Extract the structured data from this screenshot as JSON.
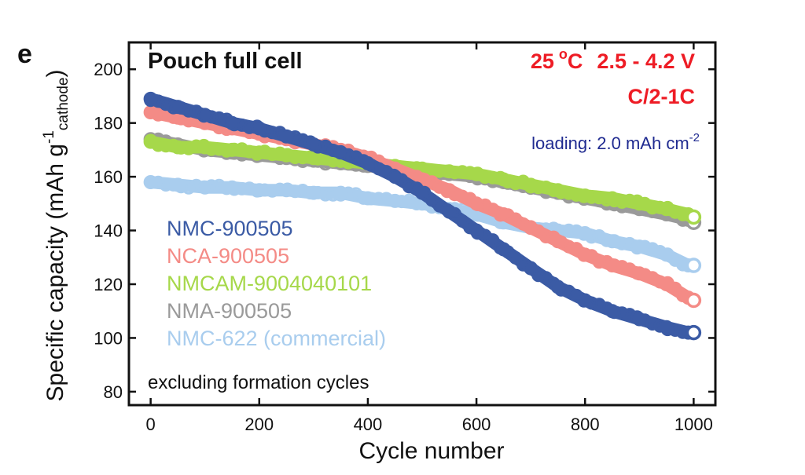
{
  "panel_letter": "e",
  "chart_data": {
    "type": "scatter",
    "title": "Pouch full cell",
    "conditions": {
      "temperature": "25",
      "degree_unit": "o",
      "temperature_unit": "C",
      "voltage": "2.5 - 4.2 V",
      "rate": "C/2-1C",
      "loading_prefix": "loading: 2.0 mAh cm",
      "loading_exp": "-2",
      "text_color": "#ee1c25",
      "loading_color": "#1f2a90"
    },
    "note": "excluding formation cycles",
    "xlabel": "Cycle number",
    "ylabel": {
      "main": "Specific capacity (mAh g",
      "sup": "-1",
      "sub": "cathode",
      "close": ")"
    },
    "xlim": [
      -40,
      1040
    ],
    "ylim": [
      75,
      210
    ],
    "xticks": [
      0,
      200,
      400,
      600,
      800,
      1000
    ],
    "yticks": [
      80,
      100,
      120,
      140,
      160,
      180,
      200
    ],
    "legend_placement": "middle-left",
    "grid": false,
    "series": [
      {
        "name": "NMC-622 (commercial)",
        "color": "#a9cdee",
        "x": [
          0,
          50,
          100,
          150,
          200,
          250,
          300,
          350,
          400,
          450,
          500,
          550,
          600,
          650,
          700,
          750,
          800,
          850,
          900,
          950,
          990
        ],
        "y": [
          158,
          157,
          156,
          156,
          155,
          155,
          154,
          154,
          152,
          151,
          150,
          148,
          146,
          143,
          141,
          140,
          139,
          136,
          134,
          131,
          127
        ],
        "end": {
          "x": 1000,
          "y": 127
        }
      },
      {
        "name": "NMA-900505",
        "color": "#9a9a9a",
        "x": [
          0,
          50,
          100,
          150,
          200,
          250,
          300,
          350,
          400,
          450,
          500,
          550,
          600,
          650,
          700,
          750,
          800,
          850,
          900,
          950,
          990
        ],
        "y": [
          174,
          172,
          170,
          169,
          168,
          167,
          166,
          165,
          164,
          163,
          162,
          161,
          160,
          158,
          156,
          154,
          152,
          150,
          148,
          146,
          144
        ],
        "end": {
          "x": 1000,
          "y": 143
        }
      },
      {
        "name": "NMCAM-9004040101",
        "color": "#a6d84a",
        "x": [
          0,
          50,
          100,
          150,
          200,
          250,
          300,
          350,
          400,
          450,
          500,
          550,
          600,
          650,
          700,
          750,
          800,
          850,
          900,
          950,
          990
        ],
        "y": [
          173,
          171,
          171,
          170,
          169,
          168,
          167,
          166,
          165,
          164,
          163,
          162,
          161,
          159,
          157,
          155,
          153,
          152,
          150,
          148,
          146
        ],
        "end": {
          "x": 1000,
          "y": 145
        }
      },
      {
        "name": "NCA-900505",
        "color": "#f48b86",
        "x": [
          0,
          50,
          100,
          150,
          200,
          250,
          300,
          350,
          400,
          450,
          500,
          550,
          600,
          650,
          700,
          750,
          800,
          850,
          900,
          950,
          990
        ],
        "y": [
          184,
          182,
          180,
          178,
          176,
          174,
          172,
          170,
          167,
          163,
          159,
          155,
          150,
          146,
          141,
          136,
          131,
          127,
          124,
          120,
          115
        ],
        "end": {
          "x": 1000,
          "y": 114
        }
      },
      {
        "name": "NMC-900505",
        "color": "#3b5ba5",
        "x": [
          0,
          50,
          100,
          150,
          200,
          250,
          300,
          350,
          400,
          450,
          500,
          550,
          600,
          650,
          700,
          750,
          800,
          850,
          900,
          950,
          990
        ],
        "y": [
          189,
          186,
          183,
          180,
          178,
          175,
          172,
          169,
          165,
          160,
          154,
          147,
          140,
          133,
          126,
          119,
          114,
          110,
          107,
          104,
          102
        ],
        "end": {
          "x": 1000,
          "y": 102
        }
      }
    ]
  }
}
